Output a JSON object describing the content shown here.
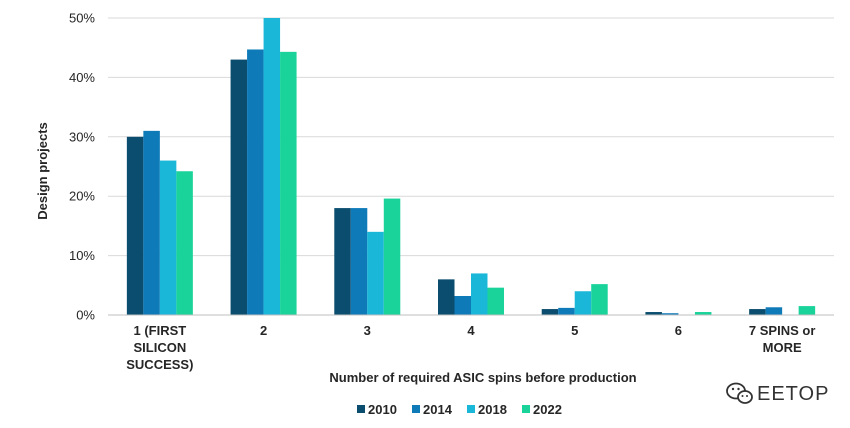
{
  "chart_data": {
    "type": "bar",
    "title": "",
    "xlabel": "Number of required ASIC spins before production",
    "ylabel": "Design projects",
    "categories": [
      [
        "1 (FIRST",
        "SILICON",
        "SUCCESS)"
      ],
      [
        "2"
      ],
      [
        "3"
      ],
      [
        "4"
      ],
      [
        "5"
      ],
      [
        "6"
      ],
      [
        "7 SPINS or",
        "MORE"
      ]
    ],
    "ylim": [
      0,
      50
    ],
    "yticks": [
      0,
      10,
      20,
      30,
      40,
      50
    ],
    "ytick_labels": [
      "0%",
      "10%",
      "20%",
      "30%",
      "40%",
      "50%"
    ],
    "grid": true,
    "legend_position": "bottom",
    "series": [
      {
        "name": "2010",
        "color": "#0b4d6e",
        "values": [
          30,
          43,
          18,
          6,
          1,
          0.5,
          1
        ]
      },
      {
        "name": "2014",
        "color": "#0f7ab8",
        "values": [
          31,
          44.7,
          18,
          3.2,
          1.2,
          0.3,
          1.3
        ]
      },
      {
        "name": "2018",
        "color": "#1bb7d8",
        "values": [
          26,
          50,
          14,
          7,
          4,
          0,
          0
        ]
      },
      {
        "name": "2022",
        "color": "#19d39a",
        "values": [
          24.2,
          44.3,
          19.6,
          4.6,
          5.2,
          0.5,
          1.5
        ]
      }
    ]
  },
  "watermark": {
    "text": "EETOP",
    "icon": "wechat-icon"
  }
}
